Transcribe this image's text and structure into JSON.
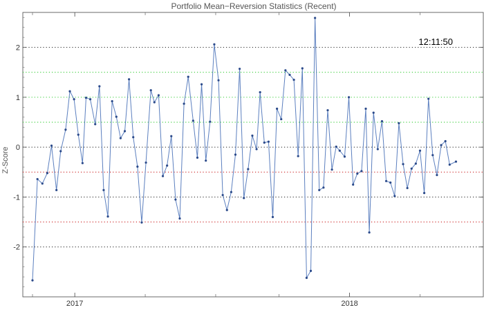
{
  "chart_data": {
    "type": "line",
    "title": "Portfolio Mean−Reversion Statistics (Recent)",
    "ylabel": "Z-Score",
    "xlabel": "",
    "annotation": "12:11:50",
    "ylim": [
      -3.0,
      2.7
    ],
    "xlim": [
      0,
      63
    ],
    "yticks": [
      {
        "v": 2,
        "label": "2"
      },
      {
        "v": 1,
        "label": "1"
      },
      {
        "v": 0,
        "label": "0"
      },
      {
        "v": -1,
        "label": "-1"
      },
      {
        "v": -2,
        "label": "-2"
      }
    ],
    "xticks": [
      {
        "v": 6,
        "label": "2017"
      },
      {
        "v": 45,
        "label": "2018"
      }
    ],
    "minor_xticks": [
      0,
      16,
      26,
      35,
      55
    ],
    "reference_lines": [
      {
        "y": 2,
        "color": "#333333"
      },
      {
        "y": 1.5,
        "color": "#33cc33"
      },
      {
        "y": 1,
        "color": "#33cc33"
      },
      {
        "y": 0.5,
        "color": "#33cc33"
      },
      {
        "y": 0,
        "color": "#333333"
      },
      {
        "y": -0.5,
        "color": "#cc2222"
      },
      {
        "y": -1,
        "color": "#333333"
      },
      {
        "y": -1.5,
        "color": "#cc2222"
      },
      {
        "y": -2,
        "color": "#333333"
      }
    ],
    "series": [
      {
        "color": "#5b7fbf",
        "points": [
          [
            0.0,
            -2.67
          ],
          [
            0.7,
            -0.64
          ],
          [
            1.4,
            -0.73
          ],
          [
            2.1,
            -0.52
          ],
          [
            2.7,
            0.03
          ],
          [
            3.4,
            -0.86
          ],
          [
            4.0,
            -0.08
          ],
          [
            4.7,
            0.35
          ],
          [
            5.3,
            1.12
          ],
          [
            5.9,
            0.96
          ],
          [
            6.5,
            0.25
          ],
          [
            7.1,
            -0.32
          ],
          [
            7.6,
            0.99
          ],
          [
            8.2,
            0.96
          ],
          [
            8.9,
            0.46
          ],
          [
            9.5,
            1.22
          ],
          [
            10.1,
            -0.86
          ],
          [
            10.7,
            -1.39
          ],
          [
            11.3,
            0.92
          ],
          [
            11.9,
            0.61
          ],
          [
            12.5,
            0.18
          ],
          [
            13.1,
            0.32
          ],
          [
            13.7,
            1.36
          ],
          [
            14.3,
            0.2
          ],
          [
            14.9,
            -0.39
          ],
          [
            15.5,
            -1.51
          ],
          [
            16.1,
            -0.31
          ],
          [
            16.8,
            1.14
          ],
          [
            17.3,
            0.9
          ],
          [
            17.9,
            1.04
          ],
          [
            18.5,
            -0.58
          ],
          [
            19.1,
            -0.37
          ],
          [
            19.7,
            0.22
          ],
          [
            20.3,
            -1.05
          ],
          [
            20.9,
            -1.43
          ],
          [
            21.5,
            0.87
          ],
          [
            22.1,
            1.41
          ],
          [
            22.8,
            0.53
          ],
          [
            23.4,
            -0.21
          ],
          [
            24.0,
            1.26
          ],
          [
            24.6,
            -0.27
          ],
          [
            25.2,
            0.51
          ],
          [
            25.8,
            2.06
          ],
          [
            26.4,
            1.34
          ],
          [
            27.0,
            -0.96
          ],
          [
            27.6,
            -1.26
          ],
          [
            28.2,
            -0.9
          ],
          [
            28.8,
            -0.15
          ],
          [
            29.4,
            1.57
          ],
          [
            30.0,
            -1.02
          ],
          [
            30.6,
            -0.44
          ],
          [
            31.2,
            0.23
          ],
          [
            31.8,
            -0.04
          ],
          [
            32.3,
            1.1
          ],
          [
            32.9,
            0.09
          ],
          [
            33.5,
            0.11
          ],
          [
            34.1,
            -1.4
          ],
          [
            34.7,
            0.77
          ],
          [
            35.3,
            0.56
          ],
          [
            35.9,
            1.54
          ],
          [
            36.5,
            1.45
          ],
          [
            37.1,
            1.35
          ],
          [
            37.7,
            -0.18
          ],
          [
            38.3,
            1.58
          ],
          [
            38.9,
            -2.62
          ],
          [
            39.5,
            -2.48
          ],
          [
            40.1,
            2.59
          ],
          [
            40.7,
            -0.86
          ],
          [
            41.3,
            -0.81
          ],
          [
            41.9,
            0.74
          ],
          [
            42.5,
            -0.45
          ],
          [
            43.1,
            0.01
          ],
          [
            43.6,
            -0.07
          ],
          [
            44.3,
            -0.19
          ],
          [
            44.9,
            1.0
          ],
          [
            45.5,
            -0.75
          ],
          [
            46.1,
            -0.53
          ],
          [
            46.7,
            -0.48
          ],
          [
            47.3,
            0.77
          ],
          [
            47.8,
            -1.71
          ],
          [
            48.4,
            0.69
          ],
          [
            49.0,
            -0.04
          ],
          [
            49.6,
            0.52
          ],
          [
            50.2,
            -0.68
          ],
          [
            50.8,
            -0.71
          ],
          [
            51.4,
            -0.98
          ],
          [
            52.0,
            0.48
          ],
          [
            52.6,
            -0.34
          ],
          [
            53.2,
            -0.82
          ],
          [
            53.8,
            -0.43
          ],
          [
            54.4,
            -0.33
          ],
          [
            55.0,
            -0.07
          ],
          [
            55.6,
            -0.92
          ],
          [
            56.2,
            0.97
          ],
          [
            56.8,
            -0.16
          ],
          [
            57.4,
            -0.56
          ],
          [
            58.0,
            0.04
          ],
          [
            58.6,
            0.12
          ],
          [
            59.2,
            -0.35
          ],
          [
            60.1,
            -0.29
          ]
        ]
      }
    ]
  }
}
